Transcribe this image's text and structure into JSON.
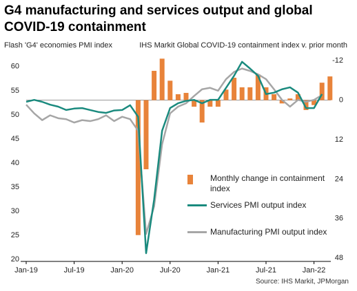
{
  "chart_data": {
    "type": "bar-line",
    "title": "G4 manufacturing and services output and global COVID-19 containment",
    "y_label": "Flash 'G4' economies PMI index",
    "y2_label": "IHS Markit Global  COVID-19 containment index v. prior month",
    "source": "Source: IHS Markit, JPMorgan",
    "categories": [
      "Jan-19",
      null,
      null,
      null,
      null,
      null,
      "Jul-19",
      null,
      null,
      null,
      null,
      null,
      "Jan-20",
      null,
      null,
      null,
      null,
      null,
      "Jul-20",
      null,
      null,
      null,
      null,
      null,
      "Jan-21",
      null,
      null,
      null,
      null,
      null,
      "Jul-21",
      null,
      null,
      null,
      null,
      null,
      "Jan-22",
      null,
      null
    ],
    "ylim": [
      19.6,
      62.4
    ],
    "yticks": [
      20,
      25,
      30,
      35,
      40,
      45,
      50,
      55,
      60
    ],
    "y2lim": [
      -13.7,
      49
    ],
    "y2_inverted": true,
    "y2ticks": [
      -12,
      0,
      12,
      24,
      36,
      48
    ],
    "series": [
      {
        "name": "Monthly change in containment index",
        "type": "bar",
        "axis": "y2",
        "color": "#e8833a",
        "values": [
          null,
          null,
          null,
          null,
          null,
          null,
          null,
          null,
          null,
          null,
          null,
          null,
          null,
          null,
          41,
          21,
          -8.9,
          -12.6,
          -5.9,
          -1.8,
          -2.2,
          2,
          6.8,
          2,
          2,
          -3.2,
          -6.8,
          -3.9,
          -3.9,
          -7.8,
          -3.9,
          -1.8,
          1,
          -0.5,
          -1.8,
          3,
          1.5,
          -5.3,
          -7.2
        ]
      },
      {
        "name": "Services PMI output index",
        "type": "line",
        "color": "#1a8a7e",
        "values": [
          52.7,
          53.1,
          52.7,
          52.1,
          51.7,
          51,
          51.3,
          51.4,
          51,
          50.6,
          50.4,
          50.9,
          51,
          52,
          49.6,
          21.3,
          32.4,
          46.7,
          51.4,
          52.4,
          52.9,
          53.1,
          52.4,
          53.1,
          53.1,
          55.6,
          58.1,
          61,
          59.6,
          58.1,
          54.3,
          54.6,
          55.3,
          55.7,
          54.6,
          51.4,
          51.4,
          54.3,
          null
        ]
      },
      {
        "name": "Manufacturing PMI output index",
        "type": "line",
        "color": "#a6a6a6",
        "values": [
          52.1,
          50.3,
          48.9,
          49.9,
          49.3,
          49.1,
          48.4,
          48.9,
          48.7,
          49.1,
          49.9,
          48.7,
          49.6,
          49.1,
          46.7,
          25.3,
          31,
          43.9,
          50.3,
          51.7,
          52.4,
          53.9,
          55.3,
          55.6,
          55,
          57.4,
          58.9,
          59.6,
          59.1,
          58.4,
          57.4,
          55.3,
          53.1,
          51.7,
          53.1,
          52.7,
          53.1,
          54.1,
          null
        ]
      }
    ]
  }
}
